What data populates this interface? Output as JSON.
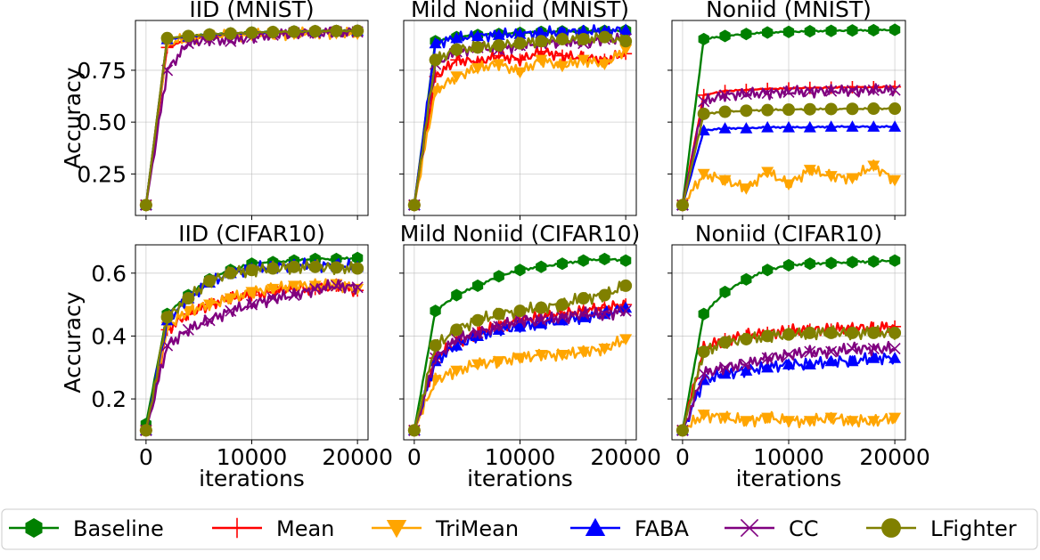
{
  "series_styles": [
    {
      "name": "Baseline",
      "color": "#008000",
      "marker": "hexagon"
    },
    {
      "name": "Mean",
      "color": "#ff0000",
      "marker": "plus"
    },
    {
      "name": "TriMean",
      "color": "#ffa500",
      "marker": "triangle-down"
    },
    {
      "name": "FABA",
      "color": "#0000ff",
      "marker": "triangle-up"
    },
    {
      "name": "CC",
      "color": "#800080",
      "marker": "x"
    },
    {
      "name": "LFighter",
      "color": "#808000",
      "marker": "circle"
    }
  ],
  "legend": {
    "placement": "bottom, outside",
    "grid": true
  },
  "chart_data": [
    {
      "type": "line",
      "title": "IID (MNIST)",
      "xlabel": "",
      "ylabel": "Accuracy",
      "xlim": [
        -1000,
        21000
      ],
      "ylim": [
        0.05,
        0.99
      ],
      "xticks": [
        0,
        10000,
        20000
      ],
      "yticks": [
        0.25,
        0.5,
        0.75
      ],
      "ytick_labels": [
        "0.25",
        "0.50",
        "0.75"
      ],
      "x": [
        0,
        2000,
        4000,
        6000,
        8000,
        10000,
        12000,
        14000,
        16000,
        18000,
        20000
      ],
      "series": [
        {
          "name": "Baseline",
          "values": [
            0.1,
            0.9,
            0.915,
            0.923,
            0.928,
            0.932,
            0.935,
            0.937,
            0.939,
            0.94,
            0.941
          ]
        },
        {
          "name": "Mean",
          "values": [
            0.1,
            0.86,
            0.9,
            0.91,
            0.92,
            0.925,
            0.93,
            0.932,
            0.935,
            0.937,
            0.938
          ]
        },
        {
          "name": "TriMean",
          "values": [
            0.1,
            0.88,
            0.905,
            0.912,
            0.918,
            0.92,
            0.925,
            0.925,
            0.93,
            0.928,
            0.925
          ]
        },
        {
          "name": "FABA",
          "values": [
            0.1,
            0.9,
            0.912,
            0.92,
            0.926,
            0.93,
            0.933,
            0.935,
            0.937,
            0.938,
            0.94
          ]
        },
        {
          "name": "CC",
          "values": [
            0.1,
            0.75,
            0.88,
            0.9,
            0.89,
            0.91,
            0.92,
            0.93,
            0.93,
            0.935,
            0.935
          ]
        },
        {
          "name": "LFighter",
          "values": [
            0.1,
            0.905,
            0.915,
            0.922,
            0.927,
            0.931,
            0.934,
            0.936,
            0.938,
            0.939,
            0.94
          ]
        }
      ]
    },
    {
      "type": "line",
      "title": "Mild Noniid (MNIST)",
      "xlabel": "",
      "ylabel": "",
      "xlim": [
        -1000,
        21000
      ],
      "ylim": [
        0.05,
        0.99
      ],
      "xticks": [
        0,
        10000,
        20000
      ],
      "yticks": [
        0.25,
        0.5,
        0.75
      ],
      "x": [
        0,
        2000,
        4000,
        6000,
        8000,
        10000,
        12000,
        14000,
        16000,
        18000,
        20000
      ],
      "series": [
        {
          "name": "Baseline",
          "values": [
            0.1,
            0.89,
            0.91,
            0.92,
            0.925,
            0.93,
            0.935,
            0.937,
            0.938,
            0.94,
            0.942
          ]
        },
        {
          "name": "Mean",
          "values": [
            0.1,
            0.72,
            0.8,
            0.79,
            0.82,
            0.8,
            0.84,
            0.82,
            0.81,
            0.8,
            0.83
          ]
        },
        {
          "name": "TriMean",
          "values": [
            0.1,
            0.65,
            0.72,
            0.76,
            0.78,
            0.74,
            0.8,
            0.77,
            0.8,
            0.78,
            0.85
          ]
        },
        {
          "name": "FABA",
          "values": [
            0.1,
            0.88,
            0.905,
            0.915,
            0.92,
            0.925,
            0.93,
            0.935,
            0.938,
            0.94,
            0.945
          ]
        },
        {
          "name": "CC",
          "values": [
            0.1,
            0.78,
            0.84,
            0.86,
            0.85,
            0.87,
            0.88,
            0.89,
            0.88,
            0.9,
            0.9
          ]
        },
        {
          "name": "LFighter",
          "values": [
            0.1,
            0.8,
            0.85,
            0.86,
            0.87,
            0.88,
            0.89,
            0.9,
            0.9,
            0.91,
            0.89
          ]
        }
      ]
    },
    {
      "type": "line",
      "title": "Noniid (MNIST)",
      "xlabel": "",
      "ylabel": "",
      "xlim": [
        -1000,
        21000
      ],
      "ylim": [
        0.05,
        0.99
      ],
      "xticks": [
        0,
        10000,
        20000
      ],
      "yticks": [
        0.25,
        0.5,
        0.75
      ],
      "x": [
        0,
        2000,
        4000,
        6000,
        8000,
        10000,
        12000,
        14000,
        16000,
        18000,
        20000
      ],
      "series": [
        {
          "name": "Baseline",
          "values": [
            0.1,
            0.9,
            0.915,
            0.925,
            0.932,
            0.935,
            0.938,
            0.94,
            0.942,
            0.943,
            0.945
          ]
        },
        {
          "name": "Mean",
          "values": [
            0.1,
            0.63,
            0.65,
            0.655,
            0.66,
            0.662,
            0.665,
            0.666,
            0.668,
            0.668,
            0.67
          ]
        },
        {
          "name": "TriMean",
          "values": [
            0.1,
            0.25,
            0.22,
            0.18,
            0.26,
            0.2,
            0.27,
            0.24,
            0.23,
            0.29,
            0.22
          ]
        },
        {
          "name": "FABA",
          "values": [
            0.1,
            0.46,
            0.47,
            0.47,
            0.475,
            0.475,
            0.475,
            0.478,
            0.478,
            0.478,
            0.478
          ]
        },
        {
          "name": "CC",
          "values": [
            0.1,
            0.6,
            0.63,
            0.635,
            0.64,
            0.645,
            0.648,
            0.65,
            0.652,
            0.654,
            0.655
          ]
        },
        {
          "name": "LFighter",
          "values": [
            0.1,
            0.54,
            0.55,
            0.555,
            0.558,
            0.56,
            0.562,
            0.563,
            0.564,
            0.565,
            0.565
          ]
        }
      ]
    },
    {
      "type": "line",
      "title": "IID (CIFAR10)",
      "xlabel": "iterations",
      "ylabel": "Accuracy",
      "xlim": [
        -1000,
        21000
      ],
      "ylim": [
        0.07,
        0.69
      ],
      "xticks": [
        0,
        10000,
        20000
      ],
      "yticks": [
        0.2,
        0.4,
        0.6
      ],
      "xtick_labels": [
        "0",
        "10000",
        "20000"
      ],
      "ytick_labels": [
        "0.2",
        "0.4",
        "0.6"
      ],
      "x": [
        0,
        2000,
        4000,
        6000,
        8000,
        10000,
        12000,
        14000,
        16000,
        18000,
        20000
      ],
      "series": [
        {
          "name": "Baseline",
          "values": [
            0.12,
            0.47,
            0.53,
            0.58,
            0.61,
            0.63,
            0.635,
            0.64,
            0.645,
            0.645,
            0.648
          ]
        },
        {
          "name": "Mean",
          "values": [
            0.1,
            0.42,
            0.47,
            0.5,
            0.52,
            0.53,
            0.54,
            0.55,
            0.55,
            0.56,
            0.545
          ]
        },
        {
          "name": "TriMean",
          "values": [
            0.1,
            0.43,
            0.48,
            0.5,
            0.52,
            0.54,
            0.55,
            0.56,
            0.56,
            0.565,
            0.55
          ]
        },
        {
          "name": "FABA",
          "values": [
            0.1,
            0.45,
            0.52,
            0.57,
            0.6,
            0.615,
            0.62,
            0.625,
            0.625,
            0.625,
            0.62
          ]
        },
        {
          "name": "CC",
          "values": [
            0.1,
            0.37,
            0.42,
            0.45,
            0.48,
            0.5,
            0.52,
            0.53,
            0.55,
            0.56,
            0.555
          ]
        },
        {
          "name": "LFighter",
          "values": [
            0.1,
            0.46,
            0.52,
            0.575,
            0.6,
            0.61,
            0.615,
            0.62,
            0.62,
            0.618,
            0.615
          ]
        }
      ]
    },
    {
      "type": "line",
      "title": "Mild Noniid (CIFAR10)",
      "xlabel": "iterations",
      "ylabel": "",
      "xlim": [
        -1000,
        21000
      ],
      "ylim": [
        0.07,
        0.69
      ],
      "xticks": [
        0,
        10000,
        20000
      ],
      "yticks": [
        0.2,
        0.4,
        0.6
      ],
      "xtick_labels": [
        "0",
        "10000",
        "20000"
      ],
      "x": [
        0,
        2000,
        4000,
        6000,
        8000,
        10000,
        12000,
        14000,
        16000,
        18000,
        20000
      ],
      "series": [
        {
          "name": "Baseline",
          "values": [
            0.1,
            0.48,
            0.53,
            0.56,
            0.59,
            0.61,
            0.62,
            0.63,
            0.64,
            0.645,
            0.64
          ]
        },
        {
          "name": "Mean",
          "values": [
            0.1,
            0.33,
            0.38,
            0.41,
            0.43,
            0.45,
            0.46,
            0.47,
            0.48,
            0.49,
            0.5
          ]
        },
        {
          "name": "TriMean",
          "values": [
            0.1,
            0.26,
            0.29,
            0.31,
            0.32,
            0.33,
            0.34,
            0.34,
            0.35,
            0.36,
            0.39
          ]
        },
        {
          "name": "FABA",
          "values": [
            0.1,
            0.32,
            0.37,
            0.4,
            0.42,
            0.43,
            0.44,
            0.45,
            0.46,
            0.47,
            0.49
          ]
        },
        {
          "name": "CC",
          "values": [
            0.1,
            0.33,
            0.39,
            0.41,
            0.43,
            0.45,
            0.45,
            0.46,
            0.47,
            0.47,
            0.48
          ]
        },
        {
          "name": "LFighter",
          "values": [
            0.1,
            0.37,
            0.42,
            0.45,
            0.47,
            0.48,
            0.49,
            0.5,
            0.52,
            0.53,
            0.56
          ]
        }
      ]
    },
    {
      "type": "line",
      "title": "Noniid (CIFAR10)",
      "xlabel": "iterations",
      "ylabel": "",
      "xlim": [
        -1000,
        21000
      ],
      "ylim": [
        0.07,
        0.69
      ],
      "xticks": [
        0,
        10000,
        20000
      ],
      "yticks": [
        0.2,
        0.4,
        0.6
      ],
      "xtick_labels": [
        "0",
        "10000",
        "20000"
      ],
      "x": [
        0,
        2000,
        4000,
        6000,
        8000,
        10000,
        12000,
        14000,
        16000,
        18000,
        20000
      ],
      "series": [
        {
          "name": "Baseline",
          "values": [
            0.1,
            0.47,
            0.54,
            0.58,
            0.61,
            0.625,
            0.63,
            0.632,
            0.635,
            0.637,
            0.64
          ]
        },
        {
          "name": "Mean",
          "values": [
            0.1,
            0.36,
            0.39,
            0.4,
            0.41,
            0.415,
            0.42,
            0.42,
            0.425,
            0.425,
            0.43
          ]
        },
        {
          "name": "TriMean",
          "values": [
            0.1,
            0.15,
            0.14,
            0.13,
            0.14,
            0.13,
            0.13,
            0.14,
            0.13,
            0.13,
            0.14
          ]
        },
        {
          "name": "FABA",
          "values": [
            0.1,
            0.26,
            0.28,
            0.29,
            0.3,
            0.31,
            0.31,
            0.32,
            0.32,
            0.33,
            0.33
          ]
        },
        {
          "name": "CC",
          "values": [
            0.1,
            0.28,
            0.3,
            0.31,
            0.33,
            0.34,
            0.35,
            0.35,
            0.36,
            0.36,
            0.36
          ]
        },
        {
          "name": "LFighter",
          "values": [
            0.1,
            0.35,
            0.38,
            0.39,
            0.4,
            0.405,
            0.41,
            0.41,
            0.41,
            0.41,
            0.41
          ]
        }
      ]
    }
  ]
}
